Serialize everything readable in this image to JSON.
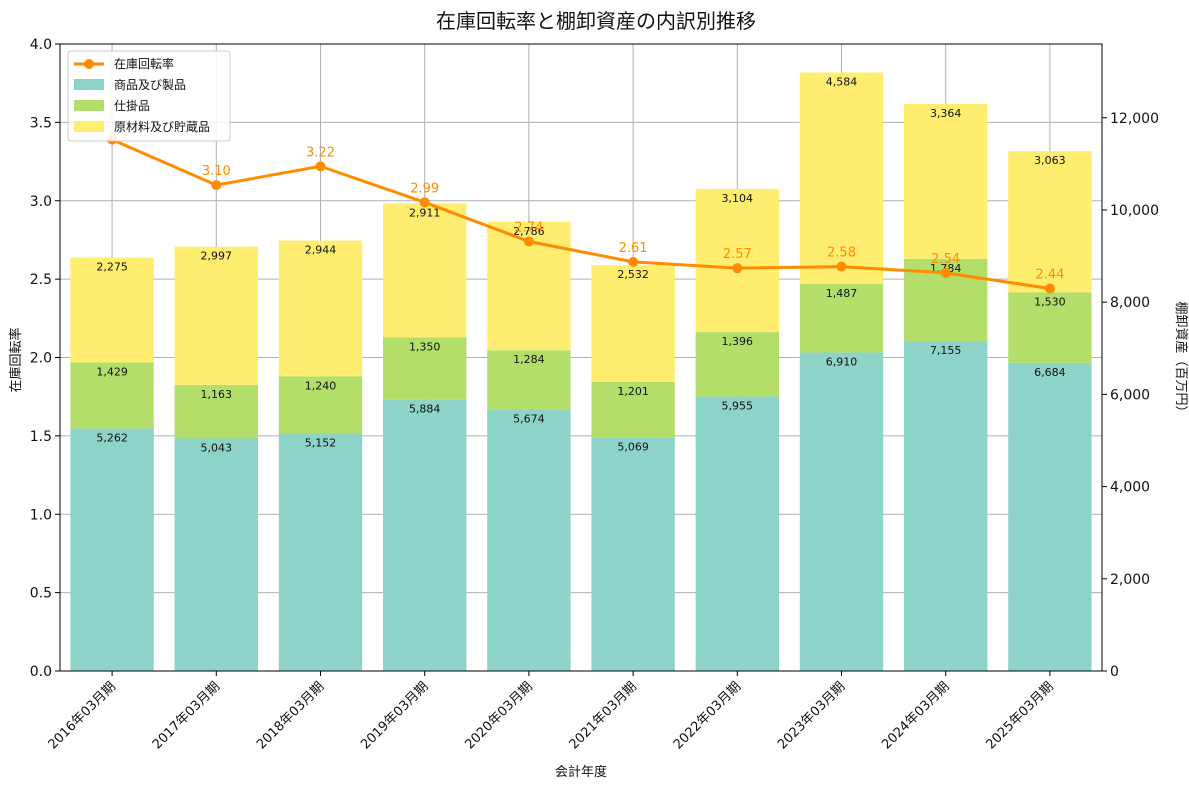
{
  "chart_data": {
    "type": "bar",
    "title": "在庫回転率と棚卸資産の内訳別推移",
    "xlabel": "会計年度",
    "ylabel_left": "在庫回転率",
    "ylabel_right": "棚卸資産（百万円）",
    "categories": [
      "2016年03月期",
      "2017年03月期",
      "2018年03月期",
      "2019年03月期",
      "2020年03月期",
      "2021年03月期",
      "2022年03月期",
      "2023年03月期",
      "2024年03月期",
      "2025年03月期"
    ],
    "stacked_series": [
      {
        "name": "商品及び製品",
        "color": "#8dd3c7",
        "values": [
          5262,
          5043,
          5152,
          5884,
          5674,
          5069,
          5955,
          6910,
          7155,
          6684
        ],
        "labels": [
          "5,262",
          "5,043",
          "5,152",
          "5,884",
          "5,674",
          "5,069",
          "5,955",
          "6,910",
          "7,155",
          "6,684"
        ]
      },
      {
        "name": "仕掛品",
        "color": "#b3de69",
        "values": [
          1429,
          1163,
          1240,
          1350,
          1284,
          1201,
          1396,
          1487,
          1784,
          1530
        ],
        "labels": [
          "1,429",
          "1,163",
          "1,240",
          "1,350",
          "1,284",
          "1,201",
          "1,396",
          "1,487",
          "1,784",
          "1,530"
        ]
      },
      {
        "name": "原材料及び貯蔵品",
        "color": "#ffed6f",
        "values": [
          2275,
          2997,
          2944,
          2911,
          2786,
          2532,
          3104,
          4584,
          3364,
          3063
        ],
        "labels": [
          "2,275",
          "2,997",
          "2,944",
          "2,911",
          "2,786",
          "2,532",
          "3,104",
          "4,584",
          "3,364",
          "3,063"
        ]
      }
    ],
    "line_series": {
      "name": "在庫回転率",
      "color": "#ff8c00",
      "values": [
        3.39,
        3.1,
        3.22,
        2.99,
        2.74,
        2.61,
        2.57,
        2.58,
        2.54,
        2.44
      ],
      "labels": [
        "",
        "3.10",
        "3.22",
        "2.99",
        "2.74",
        "2.61",
        "2.57",
        "2.58",
        "2.54",
        "2.44"
      ]
    },
    "y_left": {
      "min": 0,
      "max": 4.0,
      "ticks": [
        "0.0",
        "0.5",
        "1.0",
        "1.5",
        "2.0",
        "2.5",
        "3.0",
        "3.5",
        "4.0"
      ]
    },
    "y_right": {
      "min": 0,
      "max": 13600,
      "ticks": [
        "0",
        "2,000",
        "4,000",
        "6,000",
        "8,000",
        "10,000",
        "12,000"
      ]
    },
    "legend_position": "top-left",
    "grid": true
  }
}
